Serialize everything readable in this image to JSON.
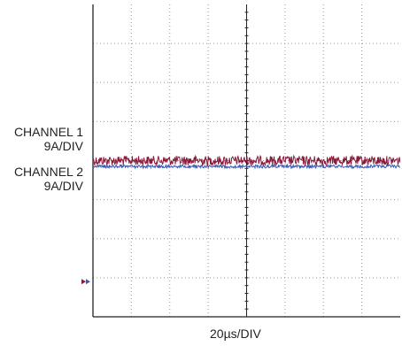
{
  "chart_data": {
    "type": "line",
    "title": "",
    "x_divisions": 8,
    "y_divisions": 8,
    "x_scale_label": "20µs/DIV",
    "grid": true,
    "channels": [
      {
        "name": "CHANNEL 1",
        "scale": "9A/DIV",
        "color": "#8b1a3a",
        "level_div": 4.0,
        "noise_div": 0.12
      },
      {
        "name": "CHANNEL 2",
        "scale": "9A/DIV",
        "color": "#3b5bb5",
        "level_div": 3.85,
        "noise_div": 0.04
      }
    ],
    "ground_marker_div": 0.9
  },
  "labels": {
    "ch1_name": "CHANNEL 1",
    "ch1_scale": "9A/DIV",
    "ch2_name": "CHANNEL 2",
    "ch2_scale": "9A/DIV",
    "x_scale": "20µs/DIV"
  }
}
